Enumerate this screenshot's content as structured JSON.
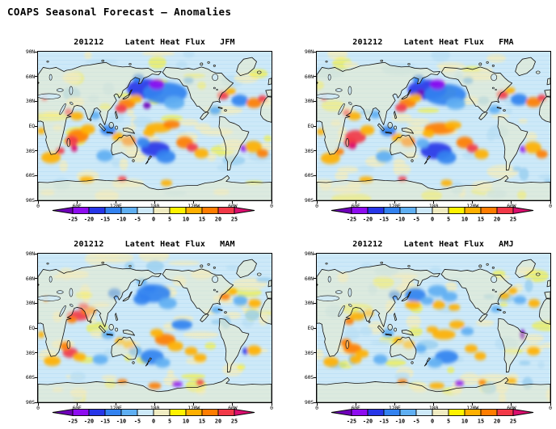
{
  "page": {
    "title": "COAPS Seasonal Forecast – Anomalies"
  },
  "chart_data": {
    "type": "heatmap",
    "figure_title": "COAPS Seasonal Forecast – Anomalies",
    "init_time": "201212",
    "variable": "Latent Heat Flux",
    "projection": "global lat-lon, Pacific centered (0E to 360E)",
    "axes": {
      "lat_labels": [
        "90N",
        "60N",
        "30N",
        "EQ",
        "30S",
        "60S",
        "90S"
      ],
      "lon_labels": [
        "0",
        "60E",
        "120E",
        "180",
        "120W",
        "60W",
        "0"
      ],
      "lat_range": [
        -90,
        90
      ],
      "lon_range": [
        0,
        360
      ],
      "grid": "thin horizontal latitude lines every 5 deg"
    },
    "colorbar": {
      "levels": [
        -25,
        -20,
        -15,
        -10,
        -5,
        0,
        5,
        10,
        15,
        20,
        25
      ],
      "colors": [
        "#6E00B8",
        "#8E0CF0",
        "#2736E8",
        "#3282F0",
        "#5FAFF2",
        "#CDE9F8",
        "#F0ECC2",
        "#FFF200",
        "#FFB000",
        "#FF7D00",
        "#F23948",
        "#DC0E6E"
      ],
      "background": "#CDE9F8",
      "label_color": "#000000"
    },
    "panels": [
      {
        "season": "JFM",
        "features": [
          [
            165,
            45,
            28,
            12,
            -18
          ],
          [
            196,
            40,
            34,
            13,
            -13
          ],
          [
            210,
            28,
            16,
            8,
            -9
          ],
          [
            183,
            50,
            12,
            6,
            -22
          ],
          [
            168,
            25,
            6,
            4,
            -27
          ],
          [
            137,
            27,
            13,
            6,
            17
          ],
          [
            128,
            21,
            9,
            5,
            21
          ],
          [
            151,
            33,
            10,
            5,
            12
          ],
          [
            186,
            -2,
            20,
            6,
            14
          ],
          [
            206,
            2,
            13,
            5,
            17
          ],
          [
            171,
            -8,
            9,
            5,
            12
          ],
          [
            181,
            -28,
            22,
            9,
            -16
          ],
          [
            197,
            -37,
            15,
            8,
            -13
          ],
          [
            162,
            -20,
            10,
            6,
            -11
          ],
          [
            226,
            -20,
            13,
            7,
            16
          ],
          [
            238,
            -26,
            9,
            5,
            21
          ],
          [
            252,
            -33,
            11,
            6,
            12
          ],
          [
            62,
            -12,
            16,
            8,
            19
          ],
          [
            52,
            -18,
            10,
            6,
            23
          ],
          [
            56,
            -27,
            5,
            4,
            28
          ],
          [
            77,
            -4,
            11,
            6,
            14
          ],
          [
            60,
            12,
            10,
            5,
            13
          ],
          [
            47,
            17,
            6,
            4,
            22
          ],
          [
            88,
            13,
            8,
            5,
            -8
          ],
          [
            108,
            -5,
            12,
            6,
            -13
          ],
          [
            123,
            -13,
            9,
            5,
            13
          ],
          [
            140,
            -18,
            11,
            6,
            17
          ],
          [
            103,
            -36,
            13,
            7,
            -9
          ],
          [
            285,
            37,
            9,
            5,
            21
          ],
          [
            297,
            42,
            8,
            4,
            14
          ],
          [
            273,
            19,
            9,
            5,
            -9
          ],
          [
            311,
            31,
            13,
            7,
            -12
          ],
          [
            333,
            28,
            12,
            6,
            16
          ],
          [
            346,
            33,
            7,
            4,
            21
          ],
          [
            318,
            -27,
            6,
            4,
            -24
          ],
          [
            332,
            -25,
            13,
            7,
            14
          ],
          [
            346,
            -33,
            9,
            5,
            19
          ],
          [
            20,
            -38,
            15,
            7,
            14
          ],
          [
            34,
            -30,
            7,
            4,
            20
          ],
          [
            10,
            34,
            5,
            3,
            22
          ],
          [
            75,
            -65,
            11,
            4,
            14
          ],
          [
            130,
            -64,
            7,
            3,
            21
          ],
          [
            198,
            -69,
            9,
            4,
            12
          ],
          [
            155,
            58,
            9,
            5,
            -13
          ],
          [
            232,
            55,
            8,
            4,
            -9
          ],
          [
            5,
            -6,
            6,
            4,
            12
          ]
        ]
      },
      {
        "season": "FMA",
        "features": [
          [
            170,
            44,
            30,
            12,
            -16
          ],
          [
            198,
            38,
            32,
            13,
            -12
          ],
          [
            214,
            27,
            15,
            7,
            -9
          ],
          [
            186,
            50,
            12,
            6,
            -21
          ],
          [
            160,
            40,
            6,
            4,
            -26
          ],
          [
            140,
            28,
            13,
            6,
            16
          ],
          [
            130,
            22,
            9,
            5,
            20
          ],
          [
            152,
            34,
            10,
            5,
            12
          ],
          [
            190,
            -3,
            24,
            7,
            16
          ],
          [
            210,
            1,
            13,
            5,
            14
          ],
          [
            172,
            -9,
            9,
            5,
            12
          ],
          [
            184,
            -30,
            24,
            10,
            -17
          ],
          [
            200,
            -38,
            15,
            8,
            -12
          ],
          [
            163,
            -21,
            10,
            6,
            -10
          ],
          [
            228,
            -20,
            13,
            7,
            15
          ],
          [
            240,
            -27,
            9,
            5,
            20
          ],
          [
            254,
            -34,
            11,
            6,
            11
          ],
          [
            60,
            -13,
            16,
            8,
            20
          ],
          [
            52,
            -20,
            10,
            6,
            24
          ],
          [
            55,
            -24,
            6,
            4,
            28
          ],
          [
            78,
            -5,
            11,
            6,
            13
          ],
          [
            58,
            12,
            10,
            5,
            12
          ],
          [
            46,
            16,
            6,
            4,
            21
          ],
          [
            90,
            14,
            8,
            5,
            -8
          ],
          [
            110,
            -6,
            12,
            6,
            -12
          ],
          [
            124,
            -14,
            9,
            5,
            12
          ],
          [
            141,
            -19,
            11,
            6,
            16
          ],
          [
            104,
            -37,
            13,
            7,
            -9
          ],
          [
            286,
            38,
            9,
            5,
            20
          ],
          [
            298,
            43,
            8,
            4,
            13
          ],
          [
            274,
            20,
            9,
            5,
            -9
          ],
          [
            312,
            32,
            13,
            7,
            -11
          ],
          [
            334,
            29,
            12,
            6,
            15
          ],
          [
            347,
            34,
            7,
            4,
            20
          ],
          [
            319,
            -28,
            6,
            4,
            -23
          ],
          [
            333,
            -26,
            13,
            7,
            13
          ],
          [
            347,
            -34,
            9,
            5,
            18
          ],
          [
            21,
            -39,
            15,
            7,
            13
          ],
          [
            35,
            -31,
            7,
            4,
            19
          ],
          [
            11,
            34,
            5,
            3,
            21
          ],
          [
            76,
            -65,
            11,
            4,
            13
          ],
          [
            132,
            -64,
            7,
            3,
            20
          ],
          [
            200,
            -69,
            9,
            4,
            11
          ],
          [
            157,
            57,
            9,
            5,
            -12
          ],
          [
            233,
            55,
            8,
            4,
            -9
          ],
          [
            6,
            -7,
            6,
            4,
            11
          ]
        ]
      },
      {
        "season": "MAM",
        "features": [
          [
            178,
            42,
            26,
            11,
            -11
          ],
          [
            160,
            35,
            13,
            7,
            -14
          ],
          [
            200,
            30,
            14,
            7,
            -9
          ],
          [
            172,
            48,
            10,
            5,
            -13
          ],
          [
            118,
            42,
            10,
            6,
            -12
          ],
          [
            62,
            15,
            18,
            6,
            21
          ],
          [
            78,
            21,
            12,
            5,
            17
          ],
          [
            70,
            26,
            8,
            4,
            23
          ],
          [
            52,
            10,
            8,
            4,
            16
          ],
          [
            196,
            -14,
            16,
            7,
            17
          ],
          [
            212,
            -22,
            12,
            6,
            13
          ],
          [
            183,
            -6,
            10,
            5,
            12
          ],
          [
            222,
            4,
            16,
            6,
            -11
          ],
          [
            176,
            -35,
            18,
            9,
            -14
          ],
          [
            192,
            -42,
            12,
            6,
            -10
          ],
          [
            150,
            -28,
            10,
            6,
            -9
          ],
          [
            236,
            -28,
            10,
            5,
            13
          ],
          [
            250,
            -36,
            10,
            5,
            10
          ],
          [
            50,
            -30,
            12,
            6,
            20
          ],
          [
            64,
            -35,
            10,
            5,
            14
          ],
          [
            42,
            -22,
            8,
            5,
            17
          ],
          [
            108,
            -8,
            10,
            5,
            -10
          ],
          [
            126,
            -16,
            8,
            4,
            10
          ],
          [
            140,
            -20,
            9,
            5,
            12
          ],
          [
            288,
            38,
            8,
            4,
            15
          ],
          [
            300,
            44,
            7,
            4,
            11
          ],
          [
            275,
            22,
            8,
            4,
            -8
          ],
          [
            312,
            33,
            11,
            6,
            -9
          ],
          [
            334,
            30,
            10,
            5,
            12
          ],
          [
            320,
            -28,
            5,
            4,
            -20
          ],
          [
            333,
            -27,
            11,
            6,
            11
          ],
          [
            22,
            -40,
            13,
            6,
            11
          ],
          [
            12,
            35,
            4,
            3,
            16
          ],
          [
            130,
            -65,
            8,
            3,
            18
          ],
          [
            180,
            -70,
            10,
            4,
            15
          ],
          [
            215,
            -68,
            8,
            3,
            -22
          ],
          [
            250,
            -66,
            6,
            3,
            20
          ],
          [
            160,
            56,
            8,
            4,
            -10
          ],
          [
            5,
            -8,
            5,
            4,
            10
          ],
          [
            96,
            -38,
            12,
            6,
            -8
          ]
        ]
      },
      {
        "season": "AMJ",
        "features": [
          [
            152,
            40,
            16,
            8,
            -13
          ],
          [
            186,
            45,
            15,
            7,
            -10
          ],
          [
            170,
            33,
            10,
            5,
            -9
          ],
          [
            205,
            38,
            12,
            6,
            -9
          ],
          [
            120,
            40,
            9,
            5,
            -11
          ],
          [
            148,
            28,
            12,
            5,
            14
          ],
          [
            188,
            28,
            10,
            5,
            12
          ],
          [
            212,
            25,
            9,
            4,
            11
          ],
          [
            196,
            -8,
            18,
            6,
            14
          ],
          [
            216,
            4,
            12,
            5,
            12
          ],
          [
            178,
            -2,
            9,
            4,
            10
          ],
          [
            232,
            -4,
            10,
            5,
            -9
          ],
          [
            200,
            -35,
            18,
            8,
            -11
          ],
          [
            182,
            -42,
            12,
            6,
            -9
          ],
          [
            160,
            -25,
            9,
            5,
            -8
          ],
          [
            238,
            -25,
            10,
            5,
            12
          ],
          [
            252,
            -34,
            9,
            5,
            10
          ],
          [
            55,
            -25,
            14,
            6,
            16
          ],
          [
            70,
            -31,
            10,
            5,
            13
          ],
          [
            45,
            -18,
            8,
            5,
            18
          ],
          [
            60,
            -38,
            9,
            5,
            11
          ],
          [
            62,
            14,
            12,
            5,
            14
          ],
          [
            50,
            8,
            7,
            4,
            17
          ],
          [
            80,
            18,
            8,
            4,
            12
          ],
          [
            110,
            -6,
            9,
            5,
            -9
          ],
          [
            126,
            -15,
            8,
            4,
            10
          ],
          [
            142,
            -20,
            9,
            5,
            11
          ],
          [
            289,
            39,
            8,
            4,
            13
          ],
          [
            302,
            45,
            7,
            4,
            10
          ],
          [
            276,
            23,
            8,
            4,
            -8
          ],
          [
            313,
            34,
            10,
            5,
            -8
          ],
          [
            317,
            -8,
            4,
            6,
            -26
          ],
          [
            335,
            30,
            9,
            5,
            11
          ],
          [
            334,
            -28,
            10,
            5,
            10
          ],
          [
            22,
            -41,
            12,
            6,
            10
          ],
          [
            132,
            -65,
            8,
            3,
            16
          ],
          [
            185,
            -70,
            12,
            4,
            13
          ],
          [
            220,
            -67,
            7,
            3,
            -24
          ],
          [
            255,
            -66,
            6,
            3,
            18
          ],
          [
            300,
            -64,
            8,
            3,
            14
          ],
          [
            98,
            -38,
            11,
            6,
            -8
          ]
        ]
      }
    ]
  }
}
